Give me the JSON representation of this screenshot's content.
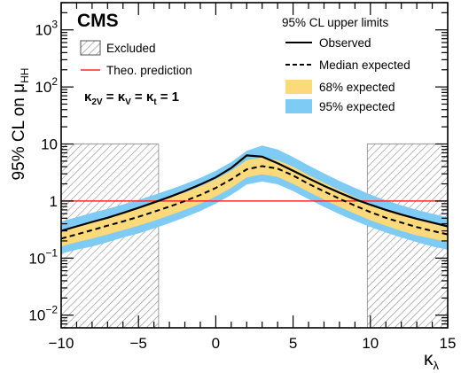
{
  "chart_data": {
    "type": "line",
    "experiment_label": "CMS",
    "ylabel_main": "95% CL on μ",
    "ylabel_sub": "HH",
    "xlabel_main": "κ",
    "xlabel_sub": "λ",
    "xlim": [
      -10,
      15
    ],
    "ylim": [
      0.006,
      3000
    ],
    "yscale": "log",
    "grid": false,
    "x_ticks": [
      -10,
      -5,
      0,
      5,
      10,
      15
    ],
    "y_ticks": [
      {
        "value": 0.01,
        "base": "10",
        "exp": "−2"
      },
      {
        "value": 0.1,
        "base": "10",
        "exp": "−1"
      },
      {
        "value": 1,
        "base": "1",
        "exp": ""
      },
      {
        "value": 10,
        "base": "10",
        "exp": ""
      },
      {
        "value": 100,
        "base": "10",
        "exp": "2"
      },
      {
        "value": 1000,
        "base": "10",
        "exp": "3"
      }
    ],
    "excluded_regions": [
      [
        -10,
        -3.7
      ],
      [
        9.8,
        15
      ]
    ],
    "theory_prediction": 1,
    "x": [
      -10,
      -9,
      -8,
      -7,
      -6,
      -5,
      -4,
      -3,
      -2,
      -1,
      0,
      1,
      2,
      3,
      4,
      5,
      6,
      7,
      8,
      9,
      10,
      11,
      12,
      13,
      14,
      15
    ],
    "series": [
      {
        "name": "Observed",
        "values": [
          0.3,
          0.36,
          0.43,
          0.51,
          0.62,
          0.76,
          0.94,
          1.18,
          1.5,
          1.95,
          2.6,
          3.8,
          6.3,
          6.0,
          4.6,
          3.4,
          2.5,
          1.85,
          1.4,
          1.08,
          0.86,
          0.7,
          0.58,
          0.49,
          0.42,
          0.36
        ]
      },
      {
        "name": "Median expected",
        "values": [
          0.22,
          0.26,
          0.31,
          0.37,
          0.44,
          0.53,
          0.65,
          0.8,
          1.0,
          1.28,
          1.7,
          2.4,
          3.6,
          4.1,
          3.7,
          2.8,
          2.0,
          1.48,
          1.1,
          0.83,
          0.64,
          0.51,
          0.42,
          0.35,
          0.3,
          0.26
        ]
      },
      {
        "name": "68% expected",
        "lower": [
          0.16,
          0.19,
          0.22,
          0.26,
          0.31,
          0.37,
          0.45,
          0.56,
          0.7,
          0.9,
          1.2,
          1.7,
          2.6,
          2.95,
          2.65,
          2.0,
          1.45,
          1.06,
          0.79,
          0.6,
          0.46,
          0.37,
          0.3,
          0.25,
          0.22,
          0.19
        ],
        "upper": [
          0.31,
          0.37,
          0.44,
          0.52,
          0.62,
          0.75,
          0.92,
          1.13,
          1.42,
          1.82,
          2.4,
          3.4,
          5.2,
          5.8,
          5.2,
          4.0,
          2.85,
          2.1,
          1.56,
          1.17,
          0.9,
          0.72,
          0.59,
          0.49,
          0.42,
          0.37
        ]
      },
      {
        "name": "95% expected",
        "lower": [
          0.12,
          0.14,
          0.16,
          0.19,
          0.23,
          0.27,
          0.33,
          0.41,
          0.52,
          0.67,
          0.9,
          1.28,
          1.95,
          2.2,
          1.97,
          1.5,
          1.08,
          0.79,
          0.59,
          0.45,
          0.35,
          0.28,
          0.23,
          0.19,
          0.16,
          0.14
        ],
        "upper": [
          0.44,
          0.52,
          0.62,
          0.73,
          0.87,
          1.05,
          1.28,
          1.58,
          1.98,
          2.55,
          3.4,
          4.8,
          7.6,
          9.4,
          8.0,
          5.9,
          4.2,
          3.05,
          2.25,
          1.7,
          1.3,
          1.03,
          0.84,
          0.7,
          0.6,
          0.52
        ]
      }
    ],
    "colors": {
      "observed": "#000000",
      "expected": "#000000",
      "band68": "#fcd97a",
      "band95": "#7ecbf5",
      "theory": "#ff2a2a",
      "hatch": "#888888"
    },
    "legend_left": {
      "excluded": "Excluded",
      "theory": "Theo. prediction",
      "coupling_prefix": "κ",
      "coupling_2v_sub": "2V",
      "coupling_eq1": " = κ",
      "coupling_v_sub": "V",
      "coupling_eq2": " = κ",
      "coupling_t_sub": "t",
      "coupling_end": " = 1"
    },
    "legend_right": {
      "header": "95% CL upper limits",
      "observed": "Observed",
      "median": "Median expected",
      "band68": "68% expected",
      "band95": "95% expected"
    }
  }
}
